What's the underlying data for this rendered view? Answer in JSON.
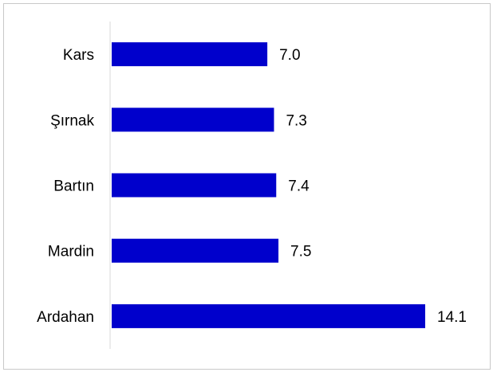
{
  "chart_data": {
    "type": "bar",
    "orientation": "horizontal",
    "categories": [
      "Kars",
      "Şırnak",
      "Bartın",
      "Mardin",
      "Ardahan"
    ],
    "values": [
      7.0,
      7.3,
      7.4,
      7.5,
      14.1
    ],
    "value_labels": [
      "7.0",
      "7.3",
      "7.4",
      "7.5",
      "14.1"
    ],
    "title": "",
    "xlabel": "",
    "ylabel": "",
    "xlim": [
      0,
      15
    ],
    "grid": false,
    "legend": "none",
    "bar_color": "#0000CC",
    "axis_color": "#d9d9d9"
  }
}
